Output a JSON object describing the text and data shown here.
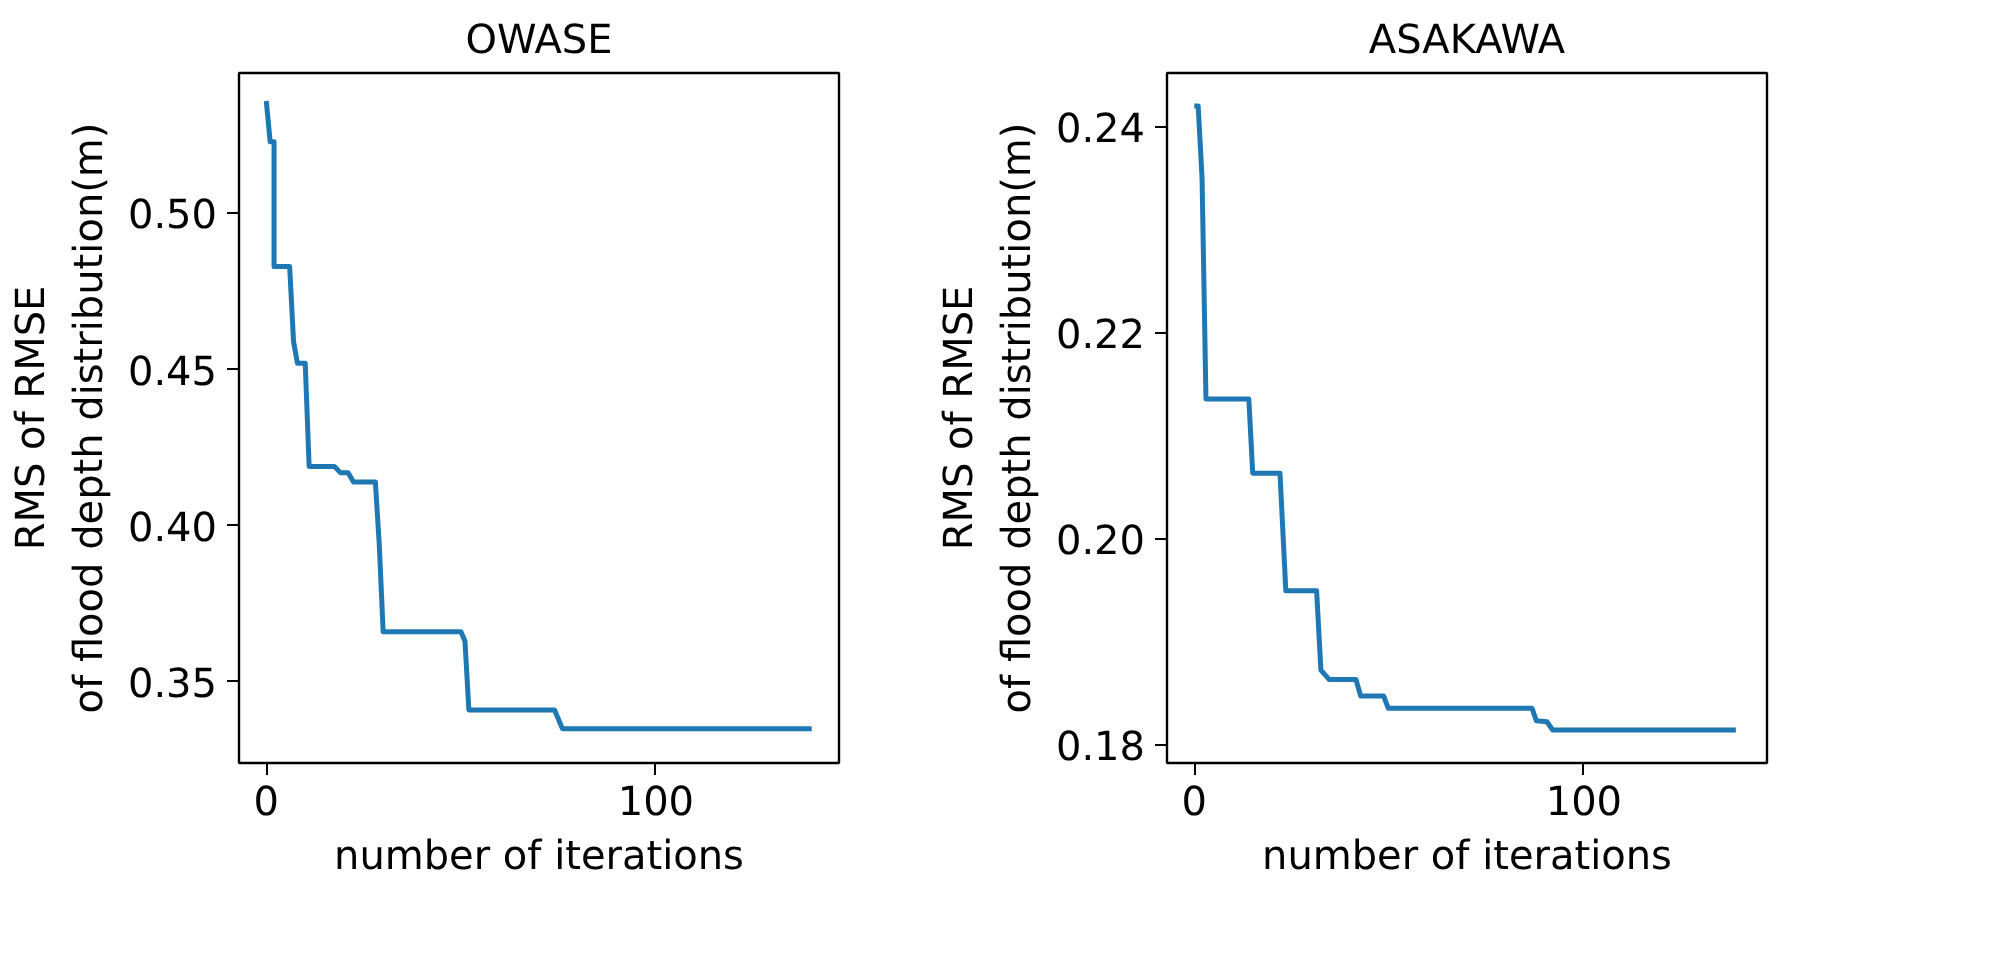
{
  "chart_data": [
    {
      "type": "line",
      "title": "OWASE",
      "xlabel": "number of iterations",
      "ylabel": "RMS of RMSE\nof flood depth distribution(m)",
      "xlim": [
        -7,
        147
      ],
      "ylim": [
        0.324,
        0.545
      ],
      "xticks": [
        0,
        100
      ],
      "yticks": [
        {
          "value": 0.35,
          "label": "0.35"
        },
        {
          "value": 0.4,
          "label": "0.40"
        },
        {
          "value": 0.45,
          "label": "0.45"
        },
        {
          "value": 0.5,
          "label": "0.50"
        }
      ],
      "grid": false,
      "series": [
        {
          "color": "#1f77b4",
          "x": [
            0,
            1,
            2,
            2,
            6,
            7,
            8,
            10,
            11,
            17.5,
            19,
            21,
            22.4,
            28,
            29,
            30,
            50,
            51,
            52,
            74,
            76,
            140
          ],
          "values": [
            0.536,
            0.523,
            0.523,
            0.483,
            0.483,
            0.459,
            0.452,
            0.452,
            0.419,
            0.419,
            0.417,
            0.417,
            0.414,
            0.414,
            0.394,
            0.366,
            0.366,
            0.363,
            0.341,
            0.341,
            0.335,
            0.335
          ]
        }
      ]
    },
    {
      "type": "line",
      "title": "ASAKAWA",
      "xlabel": "number of iterations",
      "ylabel": "RMS of RMSE\nof flood depth distribution(m)",
      "xlim": [
        -7,
        147
      ],
      "ylim": [
        0.1783,
        0.2452
      ],
      "xticks": [
        0,
        100
      ],
      "yticks": [
        {
          "value": 0.18,
          "label": "0.18"
        },
        {
          "value": 0.2,
          "label": "0.20"
        },
        {
          "value": 0.22,
          "label": "0.22"
        },
        {
          "value": 0.24,
          "label": "0.24"
        }
      ],
      "grid": false,
      "series": [
        {
          "color": "#1f77b4",
          "x": [
            0,
            1,
            2,
            3,
            14,
            15,
            22,
            23.5,
            31.4,
            32.5,
            34.6,
            41.5,
            42.7,
            48.6,
            49.8,
            86.7,
            87.8,
            90.5,
            92,
            139
          ],
          "values": [
            0.242,
            0.242,
            0.235,
            0.2136,
            0.2136,
            0.2064,
            0.2064,
            0.195,
            0.195,
            0.1873,
            0.1864,
            0.1864,
            0.1848,
            0.1848,
            0.1836,
            0.1836,
            0.1824,
            0.1823,
            0.1815,
            0.1815
          ]
        }
      ]
    }
  ]
}
